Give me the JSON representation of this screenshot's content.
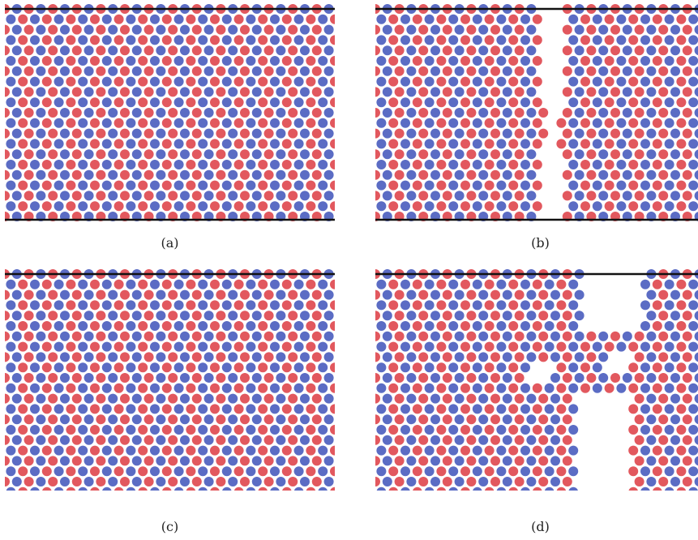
{
  "colors": {
    "particle_a": "#e2585e",
    "particle_b": "#5b6cc4",
    "wall": "#111111"
  },
  "panels": [
    {
      "id": "a",
      "caption": "(a)",
      "state": "intact lattice"
    },
    {
      "id": "b",
      "caption": "(b)",
      "state": "narrow vertical gap"
    },
    {
      "id": "c",
      "caption": "(c)",
      "state": "intact lattice"
    },
    {
      "id": "d",
      "caption": "(d)",
      "state": "wide fracture with voids"
    }
  ]
}
